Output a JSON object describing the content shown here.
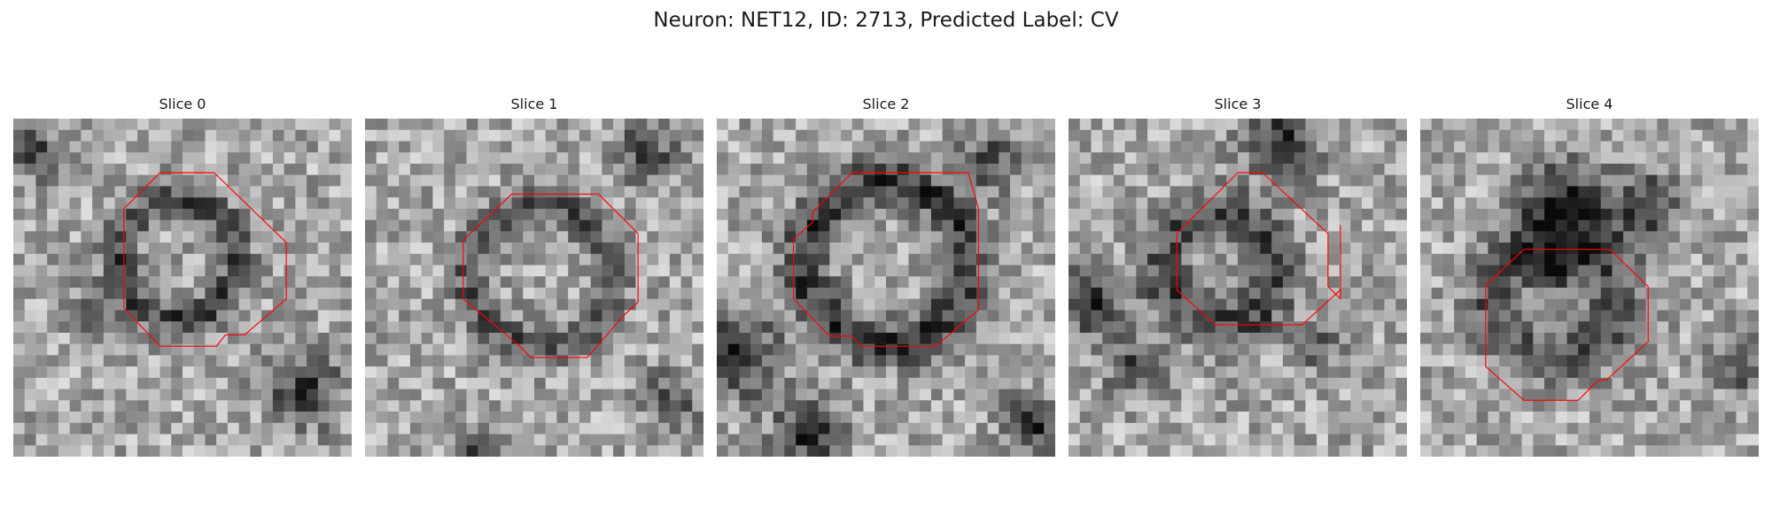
{
  "figure": {
    "title": "Neuron: NET12, ID: 2713, Predicted Label: CV"
  },
  "style": {
    "contour_color": "#ff0000",
    "colormap": "gray"
  },
  "panels": [
    {
      "title": "Slice 0"
    },
    {
      "title": "Slice 1"
    },
    {
      "title": "Slice 2"
    },
    {
      "title": "Slice 3"
    },
    {
      "title": "Slice 4"
    }
  ]
}
